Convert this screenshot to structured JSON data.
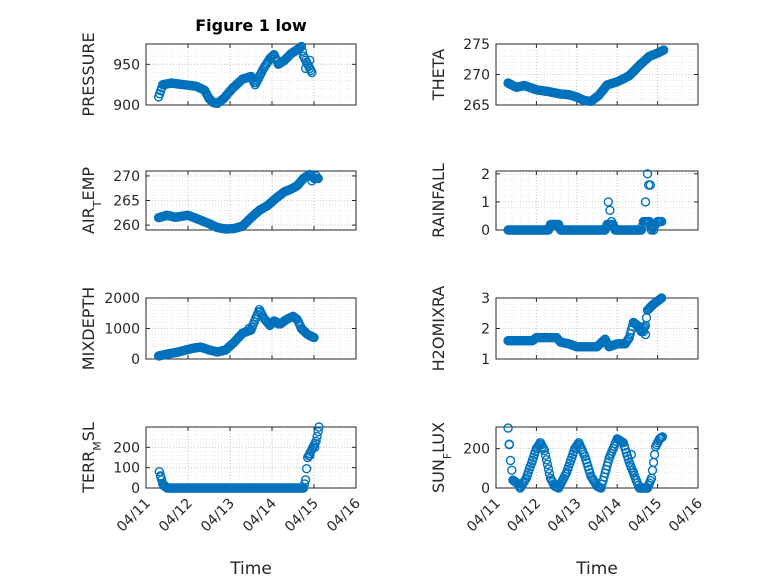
{
  "figure": {
    "title": "Figure 1 low",
    "marker_color": "#0072bd"
  },
  "chart_data": [
    {
      "type": "scatter",
      "ylabel_main": "PRESSURE",
      "ylabel_sub": "",
      "ylim": [
        900,
        975
      ],
      "yticks": [
        900,
        950
      ],
      "ytick_labels": [
        "900",
        "950"
      ],
      "xlim": [
        0,
        5
      ],
      "show_xticklabels": false,
      "xlabel": "",
      "anchors": [
        [
          0.3,
          910
        ],
        [
          0.4,
          925
        ],
        [
          0.6,
          927
        ],
        [
          0.9,
          925
        ],
        [
          1.2,
          923
        ],
        [
          1.4,
          918
        ],
        [
          1.5,
          908
        ],
        [
          1.6,
          903
        ],
        [
          1.7,
          902
        ],
        [
          1.85,
          908
        ],
        [
          2.05,
          920
        ],
        [
          2.3,
          932
        ],
        [
          2.5,
          935
        ],
        [
          2.6,
          925
        ],
        [
          2.8,
          945
        ],
        [
          2.95,
          957
        ],
        [
          3.05,
          962
        ],
        [
          3.15,
          950
        ],
        [
          3.3,
          955
        ],
        [
          3.45,
          963
        ],
        [
          3.6,
          968
        ],
        [
          3.7,
          972
        ],
        [
          3.75,
          960
        ],
        [
          3.85,
          950
        ],
        [
          3.95,
          940
        ]
      ],
      "extra_points": [
        [
          3.8,
          945
        ],
        [
          3.9,
          955
        ]
      ]
    },
    {
      "type": "scatter",
      "ylabel_main": "THETA",
      "ylabel_sub": "",
      "ylim": [
        265,
        275
      ],
      "yticks": [
        265,
        270,
        275
      ],
      "ytick_labels": [
        "265",
        "270",
        "275"
      ],
      "xlim": [
        0,
        5
      ],
      "show_xticklabels": false,
      "xlabel": "",
      "anchors": [
        [
          0.3,
          268.6
        ],
        [
          0.5,
          267.9
        ],
        [
          0.7,
          268.2
        ],
        [
          1.0,
          267.5
        ],
        [
          1.3,
          267.2
        ],
        [
          1.6,
          266.8
        ],
        [
          1.8,
          266.7
        ],
        [
          2.0,
          266.3
        ],
        [
          2.2,
          265.7
        ],
        [
          2.35,
          265.6
        ],
        [
          2.55,
          266.6
        ],
        [
          2.75,
          268.3
        ],
        [
          3.0,
          268.8
        ],
        [
          3.3,
          269.8
        ],
        [
          3.55,
          271.5
        ],
        [
          3.8,
          273
        ],
        [
          4.0,
          273.5
        ],
        [
          4.15,
          274
        ]
      ],
      "extra_points": []
    },
    {
      "type": "scatter",
      "ylabel_main": "AIR",
      "ylabel_sub": "T",
      "ylabel_after": "EMP",
      "ylim": [
        259,
        271
      ],
      "yticks": [
        260,
        265,
        270
      ],
      "ytick_labels": [
        "260",
        "265",
        "270"
      ],
      "xlim": [
        0,
        5
      ],
      "show_xticklabels": false,
      "xlabel": "",
      "anchors": [
        [
          0.3,
          261.5
        ],
        [
          0.5,
          262
        ],
        [
          0.7,
          261.6
        ],
        [
          1.0,
          262
        ],
        [
          1.3,
          261
        ],
        [
          1.5,
          260.3
        ],
        [
          1.7,
          259.5
        ],
        [
          1.9,
          259.2
        ],
        [
          2.1,
          259.3
        ],
        [
          2.3,
          259.8
        ],
        [
          2.5,
          261.5
        ],
        [
          2.7,
          263
        ],
        [
          2.9,
          264
        ],
        [
          3.1,
          265.5
        ],
        [
          3.3,
          266.8
        ],
        [
          3.45,
          267.3
        ],
        [
          3.6,
          268
        ],
        [
          3.75,
          269.5
        ],
        [
          3.9,
          270.3
        ],
        [
          4.0,
          269.5
        ],
        [
          4.1,
          269.5
        ]
      ],
      "extra_points": [
        [
          3.95,
          269
        ],
        [
          4.05,
          270
        ]
      ]
    },
    {
      "type": "scatter",
      "ylabel_main": "RAINFALL",
      "ylabel_sub": "",
      "ylim": [
        0,
        2.1
      ],
      "yticks": [
        0,
        1,
        2
      ],
      "ytick_labels": [
        "0",
        "1",
        "2"
      ],
      "xlim": [
        0,
        5
      ],
      "show_xticklabels": false,
      "xlabel": "",
      "anchors": [
        [
          0.3,
          0
        ],
        [
          1.3,
          0
        ],
        [
          1.35,
          0.2
        ],
        [
          1.55,
          0.2
        ],
        [
          1.6,
          0
        ],
        [
          2.7,
          0
        ],
        [
          2.75,
          0.2
        ],
        [
          2.9,
          0.2
        ],
        [
          2.95,
          0
        ],
        [
          3.6,
          0
        ],
        [
          3.65,
          0.3
        ],
        [
          3.75,
          0.3
        ],
        [
          3.8,
          0.3
        ],
        [
          3.85,
          0
        ],
        [
          4.0,
          0.3
        ],
        [
          4.1,
          0.3
        ]
      ],
      "extra_points": [
        [
          2.78,
          1.0
        ],
        [
          2.82,
          0.7
        ],
        [
          2.86,
          0.3
        ],
        [
          3.7,
          1.0
        ],
        [
          3.75,
          2.0
        ],
        [
          3.78,
          1.6
        ],
        [
          3.82,
          1.6
        ],
        [
          3.86,
          0.1
        ],
        [
          3.9,
          0
        ]
      ]
    },
    {
      "type": "scatter",
      "ylabel_main": "MIXDEPTH",
      "ylabel_sub": "",
      "ylim": [
        0,
        2000
      ],
      "yticks": [
        0,
        1000,
        2000
      ],
      "ytick_labels": [
        "0",
        "1000",
        "2000"
      ],
      "xlim": [
        0,
        5
      ],
      "show_xticklabels": false,
      "xlabel": "",
      "anchors": [
        [
          0.3,
          100
        ],
        [
          0.5,
          160
        ],
        [
          0.8,
          240
        ],
        [
          1.1,
          350
        ],
        [
          1.3,
          390
        ],
        [
          1.5,
          300
        ],
        [
          1.7,
          230
        ],
        [
          1.9,
          300
        ],
        [
          2.1,
          550
        ],
        [
          2.3,
          850
        ],
        [
          2.5,
          950
        ],
        [
          2.6,
          1300
        ],
        [
          2.7,
          1620
        ],
        [
          2.8,
          1350
        ],
        [
          2.95,
          1100
        ],
        [
          3.05,
          1250
        ],
        [
          3.2,
          1150
        ],
        [
          3.35,
          1300
        ],
        [
          3.5,
          1400
        ],
        [
          3.6,
          1300
        ],
        [
          3.7,
          1000
        ],
        [
          3.85,
          800
        ],
        [
          4.0,
          700
        ]
      ],
      "extra_points": [
        [
          2.45,
          1000
        ],
        [
          3.15,
          1150
        ]
      ]
    },
    {
      "type": "scatter",
      "ylabel_main": "H2OMIXRA",
      "ylabel_sub": "",
      "ylim": [
        1,
        3
      ],
      "yticks": [
        1,
        2,
        3
      ],
      "ytick_labels": [
        "1",
        "2",
        "3"
      ],
      "xlim": [
        0,
        5
      ],
      "show_xticklabels": false,
      "xlabel": "",
      "anchors": [
        [
          0.3,
          1.6
        ],
        [
          0.9,
          1.6
        ],
        [
          1.0,
          1.7
        ],
        [
          1.5,
          1.7
        ],
        [
          1.6,
          1.55
        ],
        [
          1.8,
          1.5
        ],
        [
          2.0,
          1.4
        ],
        [
          2.5,
          1.4
        ],
        [
          2.7,
          1.65
        ],
        [
          2.8,
          1.4
        ],
        [
          3.0,
          1.5
        ],
        [
          3.2,
          1.5
        ],
        [
          3.3,
          1.7
        ],
        [
          3.4,
          2.2
        ],
        [
          3.5,
          2.1
        ],
        [
          3.6,
          1.9
        ],
        [
          3.7,
          2.1
        ],
        [
          3.75,
          2.6
        ],
        [
          3.9,
          2.8
        ],
        [
          4.1,
          3.0
        ]
      ],
      "extra_points": [
        [
          3.65,
          1.9
        ],
        [
          3.7,
          1.8
        ]
      ]
    },
    {
      "type": "scatter",
      "ylabel_main": "TERR",
      "ylabel_sub": "M",
      "ylabel_after": "SL",
      "ylim": [
        0,
        300
      ],
      "yticks": [
        0,
        100,
        200
      ],
      "ytick_labels": [
        "0",
        "100",
        "200"
      ],
      "xlim": [
        0,
        5
      ],
      "show_xticklabels": true,
      "xlabel": "Time",
      "xticks": [
        0,
        1,
        2,
        3,
        4,
        5
      ],
      "xtick_labels": [
        "04/11",
        "04/12",
        "04/13",
        "04/14",
        "04/15",
        "04/16"
      ],
      "anchors": [
        [
          0.32,
          80
        ],
        [
          0.4,
          20
        ],
        [
          0.5,
          0
        ],
        [
          3.75,
          0
        ],
        [
          3.8,
          40
        ],
        [
          3.85,
          150
        ],
        [
          3.95,
          190
        ],
        [
          4.05,
          230
        ],
        [
          4.12,
          300
        ]
      ],
      "extra_points": [
        [
          0.35,
          55
        ],
        [
          0.42,
          12
        ],
        [
          3.9,
          160
        ],
        [
          4.02,
          200
        ]
      ]
    },
    {
      "type": "scatter",
      "ylabel_main": "SUN",
      "ylabel_sub": "F",
      "ylabel_after": "LUX",
      "ylim": [
        0,
        310
      ],
      "yticks": [
        0,
        200
      ],
      "ytick_labels": [
        "0",
        "200"
      ],
      "xlim": [
        0,
        5
      ],
      "show_xticklabels": true,
      "xlabel": "Time",
      "xticks": [
        0,
        1,
        2,
        3,
        4,
        5
      ],
      "xtick_labels": [
        "04/11",
        "04/12",
        "04/13",
        "04/14",
        "04/15",
        "04/16"
      ],
      "anchors": [
        [
          0.3,
          305
        ],
        [
          0.36,
          140
        ],
        [
          0.42,
          40
        ],
        [
          0.55,
          20
        ],
        [
          0.6,
          0
        ],
        [
          0.75,
          50
        ],
        [
          1.0,
          200
        ],
        [
          1.1,
          230
        ],
        [
          1.2,
          190
        ],
        [
          1.35,
          50
        ],
        [
          1.45,
          10
        ],
        [
          1.55,
          0
        ],
        [
          1.75,
          80
        ],
        [
          1.95,
          200
        ],
        [
          2.05,
          230
        ],
        [
          2.2,
          160
        ],
        [
          2.35,
          60
        ],
        [
          2.5,
          10
        ],
        [
          2.6,
          0
        ],
        [
          2.8,
          150
        ],
        [
          3.0,
          250
        ],
        [
          3.15,
          230
        ],
        [
          3.3,
          130
        ],
        [
          3.45,
          50
        ],
        [
          3.55,
          0
        ],
        [
          3.75,
          0
        ],
        [
          3.85,
          50
        ],
        [
          3.95,
          210
        ],
        [
          4.05,
          250
        ],
        [
          4.12,
          260
        ]
      ],
      "extra_points": [
        [
          0.33,
          220
        ],
        [
          3.35,
          170
        ],
        [
          3.4,
          80
        ]
      ]
    }
  ]
}
